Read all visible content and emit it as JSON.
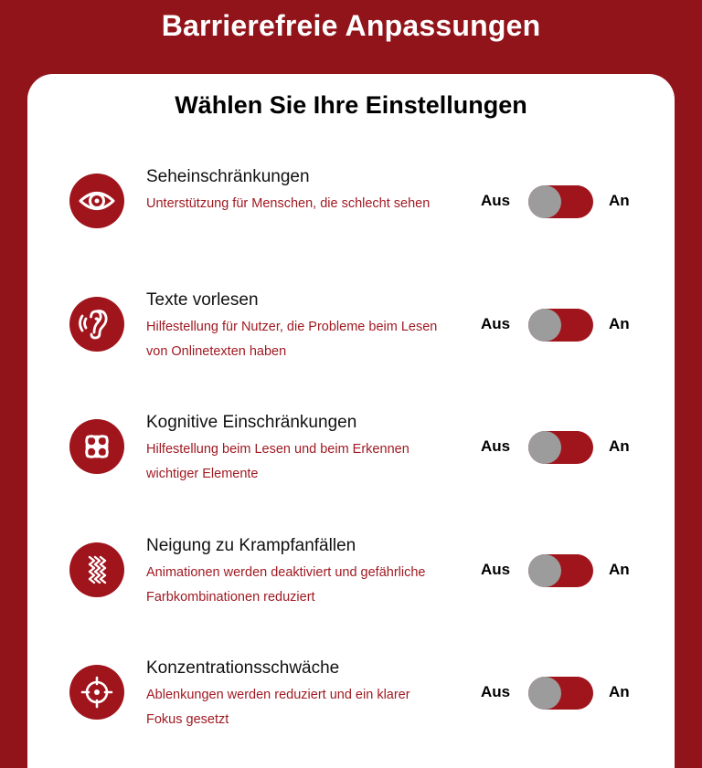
{
  "header": {
    "title": "Barrierefreie Anpassungen"
  },
  "panel": {
    "title": "Wählen Sie Ihre Einstellungen"
  },
  "settings": [
    {
      "title": "Seheinschränkungen",
      "description": "Unterstützung für Menschen, die schlecht sehen",
      "icon": "eye-icon",
      "off_label": "Aus",
      "on_label": "An",
      "enabled": false
    },
    {
      "title": "Texte vorlesen",
      "description": "Hilfestellung für Nutzer, die Probleme beim Lesen von Onlinetexten haben",
      "icon": "ear-icon",
      "off_label": "Aus",
      "on_label": "An",
      "enabled": false
    },
    {
      "title": "Kognitive Einschränkungen",
      "description": "Hilfestellung beim Lesen und beim Erkennen wichtiger Elemente",
      "icon": "brain-knot-icon",
      "off_label": "Aus",
      "on_label": "An",
      "enabled": false
    },
    {
      "title": "Neigung zu Krampfanfällen",
      "description": "Animationen werden deaktiviert und gefährliche Farbkombinationen reduziert",
      "icon": "zigzag-waves-icon",
      "off_label": "Aus",
      "on_label": "An",
      "enabled": false
    },
    {
      "title": "Konzentrationsschwäche",
      "description": "Ablenkungen werden reduziert und ein klarer Fokus gesetzt",
      "icon": "target-icon",
      "off_label": "Aus",
      "on_label": "An",
      "enabled": false
    }
  ],
  "colors": {
    "brand": "#92141b",
    "accent": "#a0141c",
    "description_text": "#a01a22",
    "toggle_knob": "#9c9c9c",
    "panel_background": "#ffffff"
  }
}
